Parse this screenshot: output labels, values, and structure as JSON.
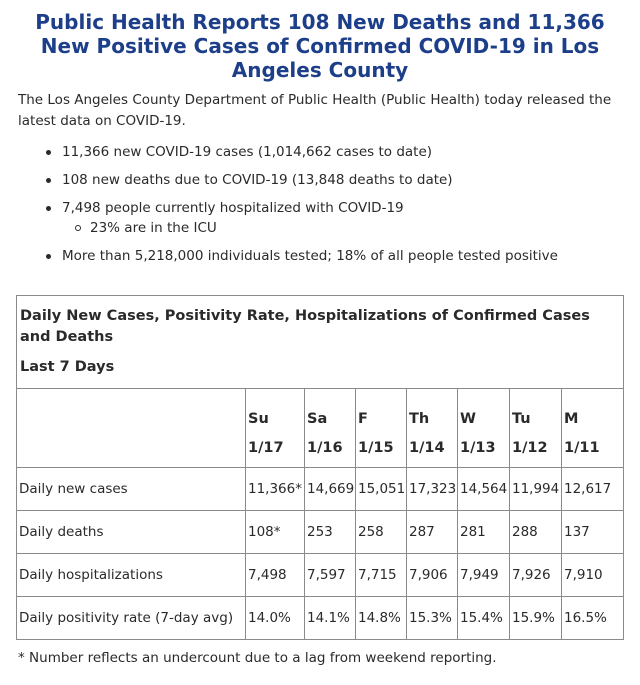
{
  "title": "Public Health Reports 108 New Deaths and 11,366 New Positive Cases of Confirmed COVID-19 in Los Angeles County",
  "intro": "The Los Angeles County Department of Public Health (Public Health) today released the latest data on COVID-19.",
  "bullets": [
    "11,366 new COVID-19 cases (1,014,662 cases to date)",
    "108 new deaths due to COVID-19 (13,848 deaths to date)",
    "7,498 people currently hospitalized with COVID-19",
    "More than 5,218,000 individuals tested; 18% of all people tested positive"
  ],
  "sub_bullet": "23% are in the ICU",
  "table": {
    "caption": "Daily New Cases, Positivity Rate, Hospitalizations of Confirmed Cases and Deaths",
    "subcaption": "Last 7 Days",
    "days": [
      "Su",
      "Sa",
      "F",
      "Th",
      "W",
      "Tu",
      "M"
    ],
    "dates": [
      "1/17",
      "1/16",
      "1/15",
      "1/14",
      "1/13",
      "1/12",
      "1/11"
    ],
    "rows": [
      {
        "label": "Daily new cases",
        "values": [
          "11,366*",
          "14,669",
          "15,051",
          "17,323",
          "14,564",
          "11,994",
          "12,617"
        ]
      },
      {
        "label": "Daily deaths",
        "values": [
          "108*",
          "253",
          "258",
          "287",
          "281",
          "288",
          "137"
        ]
      },
      {
        "label": "Daily hospitalizations",
        "values": [
          "7,498",
          "7,597",
          "7,715",
          "7,906",
          "7,949",
          "7,926",
          "7,910"
        ]
      },
      {
        "label": "Daily positivity rate (7-day avg)",
        "values": [
          "14.0%",
          "14.1%",
          "14.8%",
          "15.3%",
          "15.4%",
          "15.9%",
          "16.5%"
        ]
      }
    ]
  },
  "footnote": "* Number reflects an undercount due to a lag from weekend reporting.",
  "colors": {
    "title": "#1d3f8a",
    "text": "#2a2a2a",
    "border": "#8a8a8a"
  }
}
